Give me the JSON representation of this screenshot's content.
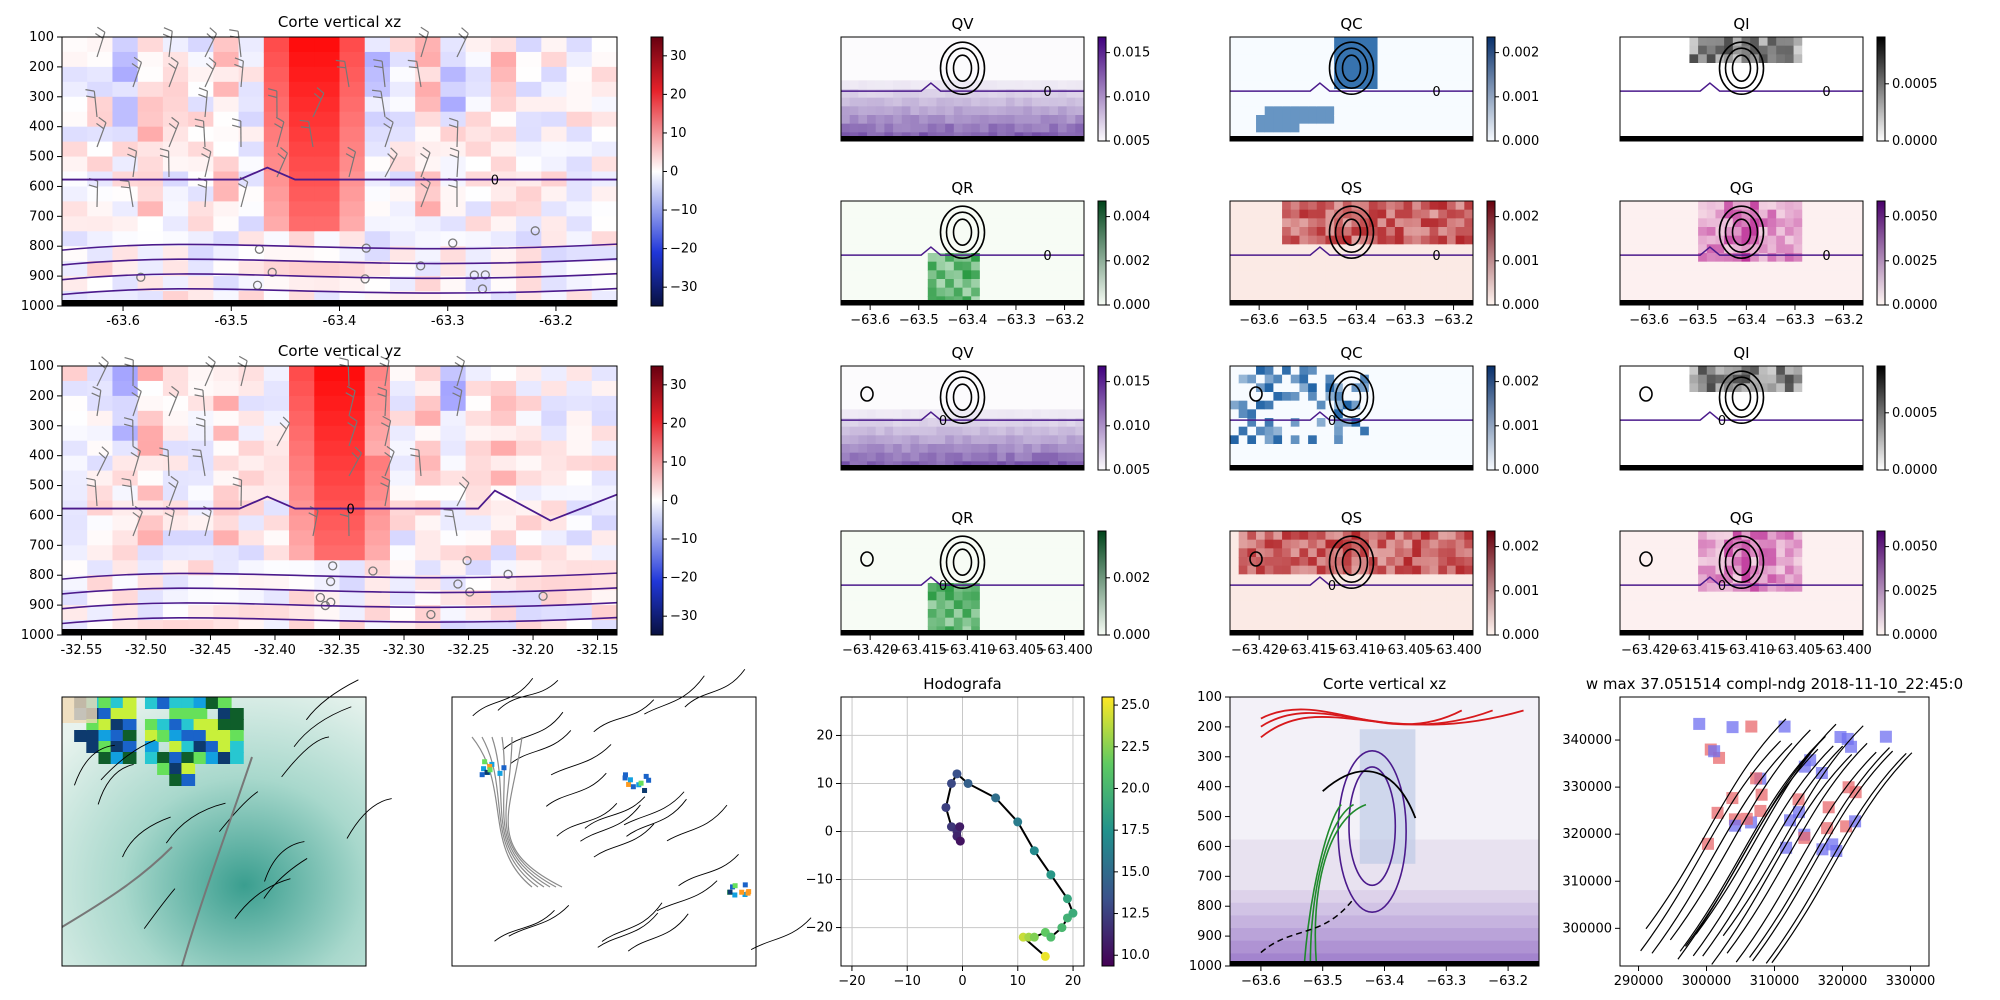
{
  "colors": {
    "red": "#d7191c",
    "blue": "#1f3fbf",
    "purple": "#4b1a8c",
    "green": "#1f8a2c"
  },
  "big": [
    {
      "title": "Corte vertical xz",
      "x_ticks": [
        "-63.6",
        "-63.5",
        "-63.4",
        "-63.3",
        "-63.2"
      ],
      "y_ticks": [
        "100",
        "200",
        "300",
        "400",
        "500",
        "600",
        "700",
        "800",
        "900",
        "1000"
      ],
      "cbar_ticks": [
        "30",
        "20",
        "10",
        "0",
        "−10",
        "−20",
        "−30"
      ],
      "contour_label": "0"
    },
    {
      "title": "Corte vertical yz",
      "x_ticks": [
        "-32.55",
        "-32.50",
        "-32.45",
        "-32.40",
        "-32.35",
        "-32.30",
        "-32.25",
        "-32.20",
        "-32.15"
      ],
      "y_ticks": [
        "100",
        "200",
        "300",
        "400",
        "500",
        "600",
        "700",
        "800",
        "900",
        "1000"
      ],
      "cbar_ticks": [
        "30",
        "20",
        "10",
        "0",
        "−10",
        "−20",
        "−30"
      ],
      "contour_label": "0"
    }
  ],
  "small": [
    {
      "title": "QV",
      "cmap": "purple",
      "x_ticks": [
        "−63.6",
        "−63.5",
        "−63.4",
        "−63.3",
        "−63.2"
      ],
      "cbar_ticks": [
        "0.015",
        "0.010",
        "0.005"
      ],
      "contour_label": "0"
    },
    {
      "title": "QC",
      "cmap": "blue",
      "x_ticks": [
        "−63.6",
        "−63.5",
        "−63.4",
        "−63.3",
        "−63.2"
      ],
      "cbar_ticks": [
        "0.002",
        "0.001",
        "0.000"
      ],
      "contour_label": "0"
    },
    {
      "title": "QI",
      "cmap": "gray",
      "x_ticks": [
        "−63.6",
        "−63.5",
        "−63.4",
        "−63.3",
        "−63.2"
      ],
      "cbar_ticks": [
        "0.0005",
        "0.0000"
      ],
      "contour_label": "0"
    },
    {
      "title": "QR",
      "cmap": "green",
      "x_ticks": [
        "−63.6",
        "−63.5",
        "−63.4",
        "−63.3",
        "−63.2"
      ],
      "cbar_ticks": [
        "0.004",
        "0.002",
        "0.000"
      ],
      "contour_label": "0"
    },
    {
      "title": "QS",
      "cmap": "red",
      "x_ticks": [
        "−63.6",
        "−63.5",
        "−63.4",
        "−63.3",
        "−63.2"
      ],
      "cbar_ticks": [
        "0.002",
        "0.001",
        "0.000"
      ],
      "contour_label": "0"
    },
    {
      "title": "QG",
      "cmap": "pink",
      "x_ticks": [
        "−63.6",
        "−63.5",
        "−63.4",
        "−63.3",
        "−63.2"
      ],
      "cbar_ticks": [
        "0.0050",
        "0.0025",
        "0.0000"
      ],
      "contour_label": "0"
    },
    {
      "title": "QV",
      "cmap": "purple",
      "x_ticks": [
        "−63.420",
        "−63.415",
        "−63.410",
        "−63.405",
        "−63.400"
      ],
      "cbar_ticks": [
        "0.015",
        "0.010",
        "0.005"
      ],
      "contour_label": "0"
    },
    {
      "title": "QC",
      "cmap": "blue",
      "x_ticks": [
        "−63.420",
        "−63.415",
        "−63.410",
        "−63.405",
        "−63.400"
      ],
      "cbar_ticks": [
        "0.002",
        "0.001",
        "0.000"
      ],
      "contour_label": "0"
    },
    {
      "title": "QI",
      "cmap": "gray",
      "x_ticks": [
        "−63.420",
        "−63.415",
        "−63.410",
        "−63.405",
        "−63.400"
      ],
      "cbar_ticks": [
        "0.0005",
        "0.0000"
      ],
      "contour_label": "0"
    },
    {
      "title": "QR",
      "cmap": "green",
      "x_ticks": [
        "−63.420",
        "−63.415",
        "−63.410",
        "−63.405",
        "−63.400"
      ],
      "cbar_ticks": [
        "0.002",
        "0.000"
      ],
      "contour_label": "0"
    },
    {
      "title": "QS",
      "cmap": "red",
      "x_ticks": [
        "−63.420",
        "−63.415",
        "−63.410",
        "−63.405",
        "−63.400"
      ],
      "cbar_ticks": [
        "0.002",
        "0.001",
        "0.000"
      ],
      "contour_label": "0"
    },
    {
      "title": "QG",
      "cmap": "pink",
      "x_ticks": [
        "−63.420",
        "−63.415",
        "−63.410",
        "−63.405",
        "−63.400"
      ],
      "cbar_ticks": [
        "0.0050",
        "0.0025",
        "0.0000"
      ],
      "contour_label": "0"
    }
  ],
  "hodograph": {
    "title": "Hodografa",
    "x_ticks": [
      "−20",
      "−10",
      "0",
      "10",
      "20"
    ],
    "y_ticks": [
      "20",
      "10",
      "0",
      "−10",
      "−20"
    ],
    "cbar_ticks": [
      "25.0",
      "22.5",
      "20.0",
      "17.5",
      "15.0",
      "12.5",
      "10.0"
    ]
  },
  "bottom_section": {
    "title": "Corte vertical xz",
    "x_ticks": [
      "−63.6",
      "−63.5",
      "−63.4",
      "−63.3",
      "−63.2"
    ],
    "y_ticks": [
      "100",
      "200",
      "300",
      "400",
      "500",
      "600",
      "700",
      "800",
      "900",
      "1000"
    ]
  },
  "wmax": {
    "title": "w max 37.051514 compl-ndg 2018-11-10_22:45:0",
    "x_ticks": [
      "290000",
      "300000",
      "310000",
      "320000",
      "330000"
    ],
    "y_ticks": [
      "340000",
      "330000",
      "320000",
      "310000",
      "300000"
    ]
  },
  "chart_data": [
    {
      "type": "heatmap",
      "title": "Corte vertical xz",
      "xlim": [
        -63.67,
        -63.17
      ],
      "ylim": [
        1000,
        100
      ],
      "colorbar_range": [
        -35,
        35
      ],
      "contour_levels_labeled": [
        "0"
      ]
    },
    {
      "type": "heatmap",
      "title": "Corte vertical yz",
      "xlim": [
        -32.57,
        -32.14
      ],
      "ylim": [
        1000,
        100
      ],
      "colorbar_range": [
        -35,
        35
      ],
      "contour_levels_labeled": [
        "0"
      ]
    },
    {
      "type": "heatmap",
      "title": "QV",
      "colorbar_range": [
        0,
        0.018
      ]
    },
    {
      "type": "heatmap",
      "title": "QC",
      "colorbar_range": [
        0,
        0.002
      ]
    },
    {
      "type": "heatmap",
      "title": "QI",
      "colorbar_range": [
        0,
        0.0009
      ]
    },
    {
      "type": "heatmap",
      "title": "QR",
      "colorbar_range": [
        0,
        0.0041
      ]
    },
    {
      "type": "heatmap",
      "title": "QS",
      "colorbar_range": [
        0,
        0.0026
      ]
    },
    {
      "type": "heatmap",
      "title": "QG",
      "colorbar_range": [
        0,
        0.0062
      ]
    },
    {
      "type": "scatter",
      "title": "Hodografa",
      "xlim": [
        -22,
        22
      ],
      "ylim": [
        -28,
        28
      ],
      "x": [
        15,
        11,
        12,
        13,
        15,
        16,
        18,
        19,
        20,
        19,
        16,
        13,
        10,
        6,
        1,
        -1,
        -2,
        -3,
        -2,
        -1,
        -1,
        -0.5,
        -0.4
      ],
      "y": [
        -26,
        -22,
        -22,
        -22,
        -21,
        -22,
        -20,
        -18,
        -17,
        -14,
        -9,
        -4,
        2,
        7,
        10,
        12,
        10,
        5,
        1,
        0,
        -1,
        1,
        -2
      ],
      "color_values": [
        26,
        25,
        24,
        23,
        22,
        21,
        20.5,
        20,
        19.5,
        19,
        18,
        17,
        16,
        15,
        14,
        13,
        12.5,
        12,
        11.5,
        11,
        10.5,
        10,
        9.5
      ],
      "colorbar_range": [
        8.5,
        26.5
      ]
    },
    {
      "type": "heatmap",
      "title": "Corte vertical xz",
      "xlim": [
        -63.67,
        -63.17
      ],
      "ylim": [
        1000,
        100
      ]
    },
    {
      "type": "heatmap",
      "title": "w max 37.051514 compl-ndg 2018-11-10_22:45:0",
      "xlim": [
        285000,
        333000
      ],
      "ylim": [
        297000,
        346000
      ]
    }
  ]
}
